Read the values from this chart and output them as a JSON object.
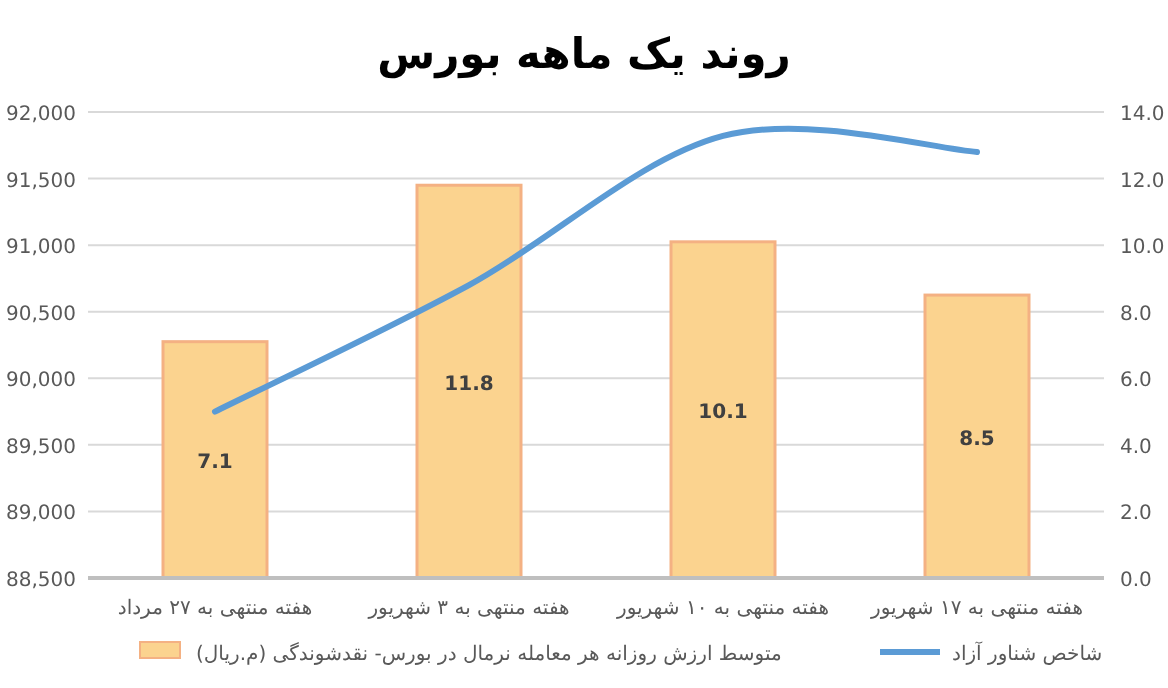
{
  "chart_data": {
    "type": "bar",
    "title": "روند یک ماهه بورس",
    "categories": [
      "هفته منتهی به ۲۷ مرداد",
      "هفته منتهی به ۳ شهریور",
      "هفته منتهی به ۱۰ شهریور",
      "هفته منتهی به ۱۷ شهریور"
    ],
    "series": [
      {
        "name": "متوسط ارزش روزانه هر معامله نرمال در بورس- نقدشوندگی (م.ریال)",
        "axis": "y2",
        "color": "#fbd38f",
        "values": [
          7.1,
          11.8,
          10.1,
          8.5
        ],
        "value_labels": [
          "7.1",
          "11.8",
          "10.1",
          "8.5"
        ]
      },
      {
        "name": "شاخص شناور آزاد",
        "type": "line",
        "color": "#5b9bd5",
        "values": [
          89750,
          90700,
          91820,
          91700
        ]
      }
    ],
    "ylim": [
      88500,
      92000
    ],
    "yticks": [
      {
        "value": 88500,
        "label": "88,500"
      },
      {
        "value": 89000,
        "label": "89,000"
      },
      {
        "value": 89500,
        "label": "89,500"
      },
      {
        "value": 90000,
        "label": "90,000"
      },
      {
        "value": 90500,
        "label": "90,500"
      },
      {
        "value": 91000,
        "label": "91,000"
      },
      {
        "value": 91500,
        "label": "91,500"
      },
      {
        "value": 92000,
        "label": "92,000"
      }
    ],
    "y2lim": [
      0,
      14
    ],
    "y2ticks": [
      {
        "value": 0,
        "label": "0.0"
      },
      {
        "value": 2,
        "label": "2.0"
      },
      {
        "value": 4,
        "label": "4.0"
      },
      {
        "value": 6,
        "label": "6.0"
      },
      {
        "value": 8,
        "label": "8.0"
      },
      {
        "value": 10,
        "label": "10.0"
      },
      {
        "value": 12,
        "label": "12.0"
      },
      {
        "value": 14,
        "label": "14.0"
      }
    ],
    "grid": "y",
    "legend": "bottom"
  }
}
